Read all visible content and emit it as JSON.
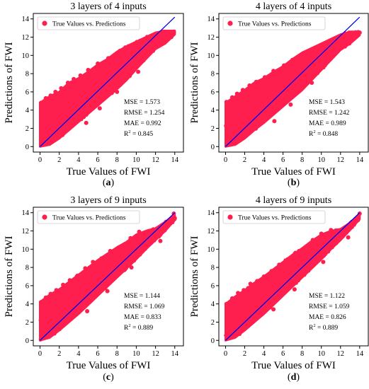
{
  "chart_data": [
    {
      "type": "scatter",
      "panel_label": "(a)",
      "title": "3 layers of 4 inputs",
      "xlabel": "True Values of FWI",
      "ylabel": "Predictions of FWI",
      "legend": "True Values vs. Predictions",
      "legend_position": "top-left",
      "xlim": [
        -0.7,
        14.9
      ],
      "ylim": [
        -0.6,
        14.6
      ],
      "xticks": [
        0,
        2,
        4,
        6,
        8,
        10,
        12,
        14
      ],
      "yticks": [
        0,
        2,
        4,
        6,
        8,
        10,
        12,
        14
      ],
      "metrics": [
        "MSE = 1.573",
        "RMSE = 1.254",
        "MAE = 0.992"
      ],
      "r2_value": "0.845",
      "band_upper": [
        [
          0,
          4.8
        ],
        [
          1,
          5.5
        ],
        [
          2,
          6.0
        ],
        [
          3,
          7.0
        ],
        [
          4,
          7.5
        ],
        [
          5,
          8.2
        ],
        [
          6,
          9.0
        ],
        [
          7,
          9.6
        ],
        [
          8,
          10.4
        ],
        [
          9,
          11.0
        ],
        [
          10,
          11.5
        ],
        [
          11,
          12.0
        ],
        [
          12,
          12.5
        ],
        [
          13,
          12.7
        ],
        [
          14,
          12.7
        ]
      ],
      "band_lower": [
        [
          14,
          12.3
        ],
        [
          13,
          11.3
        ],
        [
          12,
          10.7
        ],
        [
          11,
          9.6
        ],
        [
          10,
          8.5
        ],
        [
          9,
          7.3
        ],
        [
          8,
          6.3
        ],
        [
          7,
          5.4
        ],
        [
          6,
          4.5
        ],
        [
          5,
          3.6
        ],
        [
          4,
          2.7
        ],
        [
          3,
          1.8
        ],
        [
          2,
          0.9
        ],
        [
          1,
          0.2
        ],
        [
          0,
          0.0
        ]
      ],
      "outliers": [
        [
          0.1,
          4.8
        ],
        [
          0.6,
          5.3
        ],
        [
          1.1,
          5.6
        ],
        [
          1.6,
          6.0
        ],
        [
          2.2,
          6.4
        ],
        [
          2.9,
          7.0
        ],
        [
          3.5,
          7.4
        ],
        [
          4.2,
          7.8
        ],
        [
          5.0,
          8.4
        ],
        [
          6.0,
          9.1
        ],
        [
          7.1,
          9.7
        ],
        [
          8.3,
          10.5
        ],
        [
          9.2,
          11.0
        ],
        [
          10.4,
          11.6
        ],
        [
          11.6,
          11.9
        ],
        [
          12.8,
          12.6
        ],
        [
          13.9,
          12.6
        ],
        [
          4.8,
          2.6
        ],
        [
          6.2,
          4.2
        ],
        [
          8.0,
          6.0
        ],
        [
          10.2,
          8.2
        ]
      ],
      "fit_line": [
        [
          0,
          0
        ],
        [
          14,
          14.2
        ]
      ]
    },
    {
      "type": "scatter",
      "panel_label": "(b)",
      "title": "4 layers of 4 inputs",
      "xlabel": "True Values of FWI",
      "ylabel": "Predictions of FWI",
      "legend": "True Values vs. Predictions",
      "legend_position": "top-left",
      "xlim": [
        -0.7,
        14.9
      ],
      "ylim": [
        -0.6,
        14.6
      ],
      "xticks": [
        0,
        2,
        4,
        6,
        8,
        10,
        12,
        14
      ],
      "yticks": [
        0,
        2,
        4,
        6,
        8,
        10,
        12,
        14
      ],
      "metrics": [
        "MSE = 1.543",
        "RMSE = 1.242",
        "MAE = 0.989"
      ],
      "r2_value": "0.848",
      "band_upper": [
        [
          0,
          4.8
        ],
        [
          1,
          5.5
        ],
        [
          2,
          6.2
        ],
        [
          3,
          7.0
        ],
        [
          4,
          7.5
        ],
        [
          5,
          8.2
        ],
        [
          6,
          8.8
        ],
        [
          7,
          9.6
        ],
        [
          8,
          10.3
        ],
        [
          9,
          10.8
        ],
        [
          10,
          11.3
        ],
        [
          11,
          11.8
        ],
        [
          12,
          12.3
        ],
        [
          13,
          12.6
        ],
        [
          14,
          12.6
        ]
      ],
      "band_lower": [
        [
          14,
          12.2
        ],
        [
          13,
          11.3
        ],
        [
          12,
          10.6
        ],
        [
          11,
          9.5
        ],
        [
          10,
          8.4
        ],
        [
          9,
          7.3
        ],
        [
          8,
          6.2
        ],
        [
          7,
          5.3
        ],
        [
          6,
          4.4
        ],
        [
          5,
          3.5
        ],
        [
          4,
          2.6
        ],
        [
          3,
          1.8
        ],
        [
          2,
          0.9
        ],
        [
          1,
          0.2
        ],
        [
          0,
          0.0
        ]
      ],
      "outliers": [
        [
          0.1,
          4.9
        ],
        [
          0.7,
          5.4
        ],
        [
          1.2,
          5.8
        ],
        [
          1.8,
          6.2
        ],
        [
          2.5,
          6.7
        ],
        [
          3.2,
          7.1
        ],
        [
          4.1,
          7.6
        ],
        [
          5.0,
          8.3
        ],
        [
          6.1,
          8.9
        ],
        [
          7.2,
          9.6
        ],
        [
          8.4,
          10.3
        ],
        [
          9.5,
          10.9
        ],
        [
          10.6,
          11.3
        ],
        [
          11.7,
          11.8
        ],
        [
          12.9,
          12.5
        ],
        [
          14.0,
          12.5
        ],
        [
          5.1,
          2.8
        ],
        [
          6.8,
          4.6
        ],
        [
          9.0,
          7.0
        ]
      ],
      "fit_line": [
        [
          0,
          0
        ],
        [
          14,
          14.2
        ]
      ]
    },
    {
      "type": "scatter",
      "panel_label": "(c)",
      "title": "3 layers of 9 inputs",
      "xlabel": "True Values of FWI",
      "ylabel": "Predictions of FWI",
      "legend": "True Values vs. Predictions",
      "legend_position": "top-left",
      "xlim": [
        -0.7,
        14.9
      ],
      "ylim": [
        -0.6,
        14.6
      ],
      "xticks": [
        0,
        2,
        4,
        6,
        8,
        10,
        12,
        14
      ],
      "yticks": [
        0,
        2,
        4,
        6,
        8,
        10,
        12,
        14
      ],
      "metrics": [
        "MSE = 1.144",
        "RMSE = 1.069",
        "MAE = 0.833"
      ],
      "r2_value": "0.889",
      "band_upper": [
        [
          0,
          4.2
        ],
        [
          1,
          5.0
        ],
        [
          2,
          5.6
        ],
        [
          3,
          6.4
        ],
        [
          4,
          7.2
        ],
        [
          5,
          8.0
        ],
        [
          6,
          8.8
        ],
        [
          7,
          9.5
        ],
        [
          8,
          10.2
        ],
        [
          9,
          10.8
        ],
        [
          10,
          11.6
        ],
        [
          11,
          12.0
        ],
        [
          12,
          12.3
        ],
        [
          13,
          13.0
        ],
        [
          14,
          13.7
        ]
      ],
      "band_lower": [
        [
          14,
          13.2
        ],
        [
          13,
          12.0
        ],
        [
          12,
          11.0
        ],
        [
          11,
          10.0
        ],
        [
          10,
          8.9
        ],
        [
          9,
          7.9
        ],
        [
          8,
          6.9
        ],
        [
          7,
          5.9
        ],
        [
          6,
          4.9
        ],
        [
          5,
          3.9
        ],
        [
          4,
          2.9
        ],
        [
          3,
          2.0
        ],
        [
          2,
          1.1
        ],
        [
          1,
          0.3
        ],
        [
          0,
          0.0
        ]
      ],
      "outliers": [
        [
          0.1,
          4.2
        ],
        [
          0.6,
          4.7
        ],
        [
          1.1,
          5.1
        ],
        [
          1.7,
          5.5
        ],
        [
          2.4,
          6.1
        ],
        [
          3.1,
          6.6
        ],
        [
          3.9,
          7.1
        ],
        [
          4.7,
          7.9
        ],
        [
          5.5,
          8.6
        ],
        [
          6.4,
          9.0
        ],
        [
          7.3,
          9.8
        ],
        [
          8.2,
          10.2
        ],
        [
          9.4,
          11.2
        ],
        [
          10.3,
          11.9
        ],
        [
          11.3,
          12.0
        ],
        [
          12.1,
          12.1
        ],
        [
          13.1,
          13.0
        ],
        [
          13.9,
          13.9
        ],
        [
          4.9,
          3.2
        ],
        [
          7.0,
          5.4
        ],
        [
          9.5,
          8.0
        ],
        [
          12.5,
          10.9
        ],
        [
          14.0,
          13.4
        ]
      ],
      "fit_line": [
        [
          0,
          0
        ],
        [
          14,
          14.0
        ]
      ]
    },
    {
      "type": "scatter",
      "panel_label": "(d)",
      "title": "4 layers of 9 inputs",
      "xlabel": "True Values of FWI",
      "ylabel": "Predictions of FWI",
      "legend": "True Values vs. Predictions",
      "legend_position": "top-left",
      "xlim": [
        -0.7,
        14.9
      ],
      "ylim": [
        -0.6,
        14.6
      ],
      "xticks": [
        0,
        2,
        4,
        6,
        8,
        10,
        12,
        14
      ],
      "yticks": [
        0,
        2,
        4,
        6,
        8,
        10,
        12,
        14
      ],
      "metrics": [
        "MSE = 1.122",
        "RMSE = 1.059",
        "MAE = 0.826"
      ],
      "r2_value": "0.889",
      "band_upper": [
        [
          0,
          4.0
        ],
        [
          1,
          4.8
        ],
        [
          2,
          5.5
        ],
        [
          3,
          6.3
        ],
        [
          4,
          7.0
        ],
        [
          5,
          7.8
        ],
        [
          6,
          8.6
        ],
        [
          7,
          9.4
        ],
        [
          8,
          10.1
        ],
        [
          9,
          10.9
        ],
        [
          10,
          11.6
        ],
        [
          11,
          12.0
        ],
        [
          12,
          12.2
        ],
        [
          13,
          12.9
        ],
        [
          14,
          13.8
        ]
      ],
      "band_lower": [
        [
          14,
          13.3
        ],
        [
          13,
          12.1
        ],
        [
          12,
          11.0
        ],
        [
          11,
          10.0
        ],
        [
          10,
          8.9
        ],
        [
          9,
          7.9
        ],
        [
          8,
          6.9
        ],
        [
          7,
          5.9
        ],
        [
          6,
          4.9
        ],
        [
          5,
          3.9
        ],
        [
          4,
          2.9
        ],
        [
          3,
          2.0
        ],
        [
          2,
          1.1
        ],
        [
          1,
          0.3
        ],
        [
          0,
          0.0
        ]
      ],
      "outliers": [
        [
          0.1,
          4.0
        ],
        [
          0.7,
          4.6
        ],
        [
          1.3,
          5.2
        ],
        [
          1.9,
          5.5
        ],
        [
          2.6,
          6.2
        ],
        [
          3.3,
          6.5
        ],
        [
          4.0,
          7.0
        ],
        [
          4.8,
          7.6
        ],
        [
          5.6,
          8.3
        ],
        [
          6.5,
          8.9
        ],
        [
          7.3,
          9.6
        ],
        [
          8.2,
          10.1
        ],
        [
          9.1,
          11.0
        ],
        [
          10.0,
          11.7
        ],
        [
          11.0,
          12.1
        ],
        [
          12.0,
          12.1
        ],
        [
          13.2,
          13.0
        ],
        [
          14.0,
          13.9
        ],
        [
          5.0,
          3.4
        ],
        [
          7.2,
          5.6
        ],
        [
          10.2,
          8.6
        ],
        [
          12.8,
          11.3
        ]
      ],
      "fit_line": [
        [
          0,
          0
        ],
        [
          14,
          14.0
        ]
      ]
    }
  ],
  "colors": {
    "points": "#ff1f4f",
    "fit_line": "#0000ee",
    "axes": "#000000",
    "background": "#ffffff"
  }
}
